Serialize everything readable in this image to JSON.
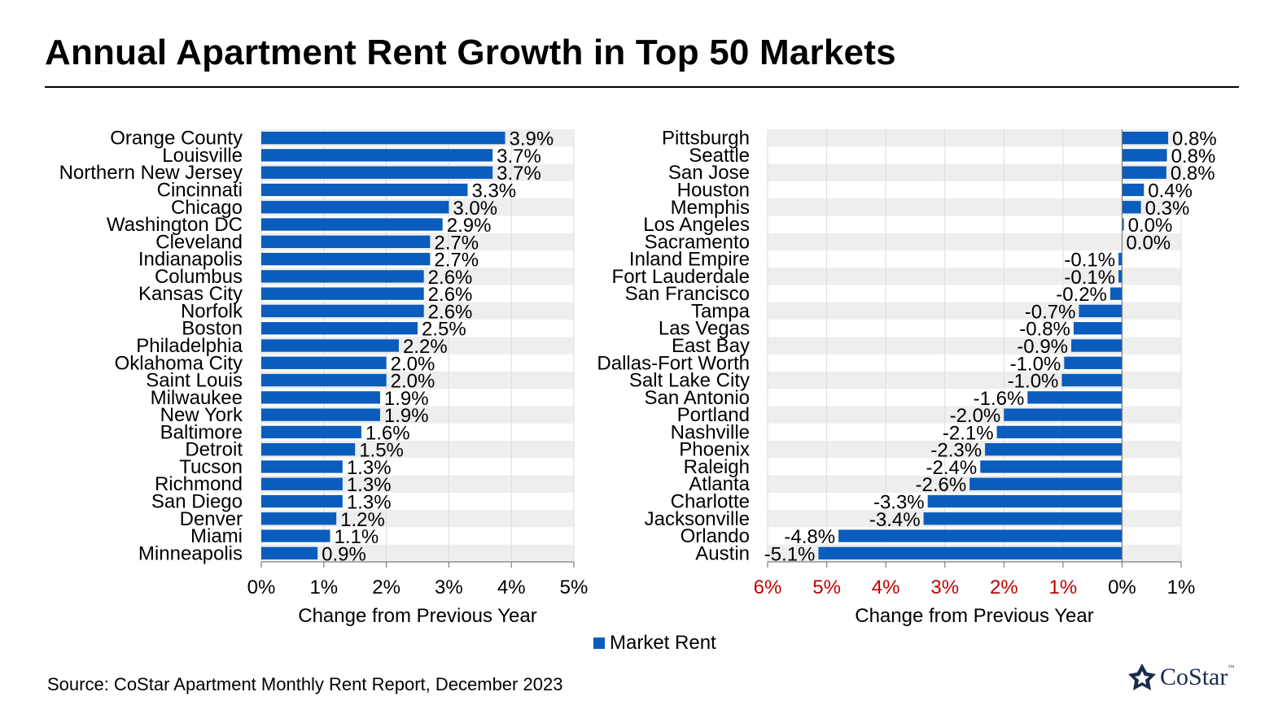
{
  "title": "Annual Apartment Rent Growth in Top 50 Markets",
  "source": "Source: CoStar Apartment Monthly Rent Report, December 2023",
  "brand": {
    "name": "CoStar",
    "tm": "™",
    "logo_icon": "costar-star-icon",
    "color": "#1a2b4c"
  },
  "colors": {
    "bar": "#0a5cbd",
    "band": "#eeeeee",
    "negative_tick": "#c00000",
    "axis": "#7f7f7f"
  },
  "legend": {
    "label": "Market Rent"
  },
  "chart_data": [
    {
      "type": "bar",
      "orientation": "horizontal",
      "xlabel": "Change from Previous Year",
      "xlim": [
        0,
        5
      ],
      "x_tick_labels": [
        "0%",
        "1%",
        "2%",
        "3%",
        "4%",
        "5%"
      ],
      "series": [
        {
          "name": "Market Rent"
        }
      ],
      "categories": [
        "Orange County",
        "Louisville",
        "Northern New Jersey",
        "Cincinnati",
        "Chicago",
        "Washington DC",
        "Cleveland",
        "Indianapolis",
        "Columbus",
        "Kansas City",
        "Norfolk",
        "Boston",
        "Philadelphia",
        "Oklahoma City",
        "Saint Louis",
        "Milwaukee",
        "New York",
        "Baltimore",
        "Detroit",
        "Tucson",
        "Richmond",
        "San Diego",
        "Denver",
        "Miami",
        "Minneapolis"
      ],
      "values": [
        3.9,
        3.7,
        3.7,
        3.3,
        3.0,
        2.9,
        2.7,
        2.7,
        2.6,
        2.6,
        2.6,
        2.5,
        2.2,
        2.0,
        2.0,
        1.9,
        1.9,
        1.6,
        1.5,
        1.3,
        1.3,
        1.3,
        1.2,
        1.1,
        0.9
      ],
      "value_labels": [
        "3.9%",
        "3.7%",
        "3.7%",
        "3.3%",
        "3.0%",
        "2.9%",
        "2.7%",
        "2.7%",
        "2.6%",
        "2.6%",
        "2.6%",
        "2.5%",
        "2.2%",
        "2.0%",
        "2.0%",
        "1.9%",
        "1.9%",
        "1.6%",
        "1.5%",
        "1.3%",
        "1.3%",
        "1.3%",
        "1.2%",
        "1.1%",
        "0.9%"
      ]
    },
    {
      "type": "bar",
      "orientation": "horizontal",
      "xlabel": "Change from Previous Year",
      "xlim": [
        -6,
        1
      ],
      "x_tick_labels": [
        "6%",
        "5%",
        "4%",
        "3%",
        "2%",
        "1%",
        "0%",
        "1%"
      ],
      "negative_ticks_red": true,
      "series": [
        {
          "name": "Market Rent"
        }
      ],
      "categories": [
        "Pittsburgh",
        "Seattle",
        "San Jose",
        "Houston",
        "Memphis",
        "Los Angeles",
        "Sacramento",
        "Inland Empire",
        "Fort Lauderdale",
        "San Francisco",
        "Tampa",
        "Las Vegas",
        "East Bay",
        "Dallas-Fort Worth",
        "Salt Lake City",
        "San Antonio",
        "Portland",
        "Nashville",
        "Phoenix",
        "Raleigh",
        "Atlanta",
        "Charlotte",
        "Jacksonville",
        "Orlando",
        "Austin"
      ],
      "values": [
        0.78,
        0.76,
        0.75,
        0.37,
        0.32,
        0.03,
        0.0,
        -0.06,
        -0.06,
        -0.2,
        -0.73,
        -0.82,
        -0.86,
        -0.98,
        -1.02,
        -1.6,
        -2.0,
        -2.12,
        -2.32,
        -2.4,
        -2.58,
        -3.29,
        -3.36,
        -4.8,
        -5.14
      ],
      "value_labels": [
        "0.8%",
        "0.8%",
        "0.8%",
        "0.4%",
        "0.3%",
        "0.0%",
        "0.0%",
        "-0.1%",
        "-0.1%",
        "-0.2%",
        "-0.7%",
        "-0.8%",
        "-0.9%",
        "-1.0%",
        "-1.0%",
        "-1.6%",
        "-2.0%",
        "-2.1%",
        "-2.3%",
        "-2.4%",
        "-2.6%",
        "-3.3%",
        "-3.4%",
        "-4.8%",
        "-5.1%"
      ]
    }
  ]
}
